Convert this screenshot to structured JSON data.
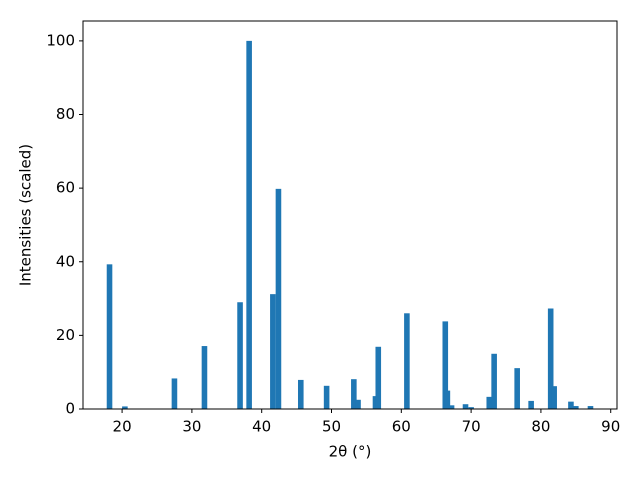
{
  "chart_data": {
    "type": "bar",
    "xlabel": "2θ (°)",
    "ylabel": "Intensities (scaled)",
    "x": [
      18.2,
      20.4,
      27.5,
      31.8,
      36.9,
      38.2,
      41.6,
      42.4,
      45.6,
      49.3,
      53.2,
      53.8,
      56.3,
      56.7,
      60.8,
      66.3,
      66.6,
      67.2,
      69.2,
      70.0,
      72.6,
      73.3,
      76.6,
      78.6,
      81.4,
      81.9,
      84.3,
      85.0,
      87.1
    ],
    "values": [
      39.3,
      0.7,
      8.3,
      17.1,
      29,
      100,
      31.2,
      59.8,
      7.9,
      6.3,
      8.1,
      2.5,
      3.5,
      16.9,
      26,
      23.8,
      5,
      1,
      1.3,
      0.5,
      3.3,
      15,
      11.1,
      2.2,
      27.3,
      6.2,
      2,
      0.8,
      0.8
    ],
    "color": "#1f77b4",
    "xlim": [
      14.4,
      90.9
    ],
    "ylim": [
      0,
      105.4
    ],
    "xticks": [
      20,
      30,
      40,
      50,
      60,
      70,
      80,
      90
    ],
    "yticks": [
      0,
      20,
      40,
      60,
      80,
      100
    ]
  }
}
